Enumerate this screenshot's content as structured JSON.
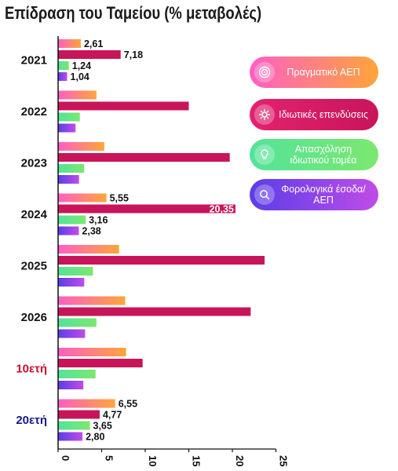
{
  "title": "Επίδραση του Ταμείου",
  "subtitle": "(% μεταβολές)",
  "colors": {
    "real_gdp": "#fb9f3a",
    "private_investment": "#c8155a",
    "private_employment": "#5ee08a",
    "fiscal_revenue": "#6e3ee8",
    "axis": "#111111",
    "highlight_red": "#c8102e",
    "highlight_blue": "#1a1a8c"
  },
  "legend": [
    {
      "label": "Πραγματικό ΑΕΠ",
      "icon": "target-icon",
      "from": "#ff5fc4",
      "to": "#ffa53a"
    },
    {
      "label": "Ιδιωτικές επενδύσεις",
      "icon": "gear-icon",
      "from": "#e3226f",
      "to": "#c8155a"
    },
    {
      "label": "Απασχόληση ιδιωτικού τομέα",
      "icon": "lightbulb-icon",
      "from": "#53e39a",
      "to": "#7be86f"
    },
    {
      "label": "Φορολογικά έσοδα/ΑΕΠ",
      "icon": "magnifier-icon",
      "from": "#5a3ee8",
      "to": "#c04ce8"
    }
  ],
  "chart_data": {
    "type": "bar",
    "orientation": "horizontal",
    "title": "Επίδραση του Ταμείου",
    "subtitle": "(% μεταβολές)",
    "categories": [
      "2021",
      "2022",
      "2023",
      "2024",
      "2025",
      "2026",
      "10ετή",
      "20ετή"
    ],
    "series": [
      {
        "name": "Πραγματικό ΑΕΠ",
        "values": [
          2.61,
          4.4,
          5.3,
          5.55,
          7.0,
          7.7,
          7.8,
          6.55
        ]
      },
      {
        "name": "Ιδιωτικές επενδύσεις",
        "values": [
          7.18,
          15.0,
          19.7,
          20.35,
          23.7,
          22.1,
          9.7,
          4.77
        ]
      },
      {
        "name": "Απασχόληση ιδιωτικού τομέα",
        "values": [
          1.24,
          2.5,
          3.0,
          3.16,
          4.0,
          4.4,
          4.3,
          3.65
        ]
      },
      {
        "name": "Φορολογικά έσοδα/ΑΕΠ",
        "values": [
          1.04,
          2.0,
          2.4,
          2.38,
          3.0,
          3.1,
          2.9,
          2.8
        ]
      }
    ],
    "data_labels": {
      "2021": [
        "2,61",
        "7,18",
        "1,24",
        "1,04"
      ],
      "2024": [
        "5,55",
        "20,35",
        "3,16",
        "2,38"
      ],
      "20ετή": [
        "6,55",
        "4,77",
        "3,65",
        "2,80"
      ]
    },
    "xlim": [
      0,
      25
    ],
    "xticks": [
      "0",
      "5",
      "10",
      "15",
      "20",
      "25"
    ],
    "legend_position": "right",
    "grid": false
  }
}
